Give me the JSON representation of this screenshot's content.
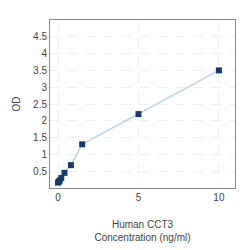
{
  "chart_data": {
    "type": "line",
    "x": [
      0.0,
      0.05,
      0.1,
      0.2,
      0.4,
      0.8,
      1.5,
      5.0,
      10.0
    ],
    "values": [
      0.16,
      0.19,
      0.22,
      0.3,
      0.45,
      0.68,
      1.3,
      2.2,
      3.5
    ],
    "color": "#b8d4e8",
    "colors": [
      "#1a3a6b",
      "#1a3a6b",
      "#1a3a6b",
      "#1a3a6b",
      "#1a3a6b",
      "#1a3a6b",
      "#1a3a6b",
      "#1a3a6b",
      "#1a3a6b"
    ],
    "marker": "square",
    "xlabel": "Human CCT3\nConcentration (ng/ml)",
    "ylabel": "OD",
    "xlim": [
      -0.5,
      11
    ],
    "ylim": [
      0,
      5.0
    ],
    "xticks": [
      0,
      5,
      10
    ],
    "yticks": [
      0.5,
      1.0,
      1.5,
      2.0,
      2.5,
      3.0,
      3.5,
      4.0,
      4.5
    ],
    "grid": true
  }
}
